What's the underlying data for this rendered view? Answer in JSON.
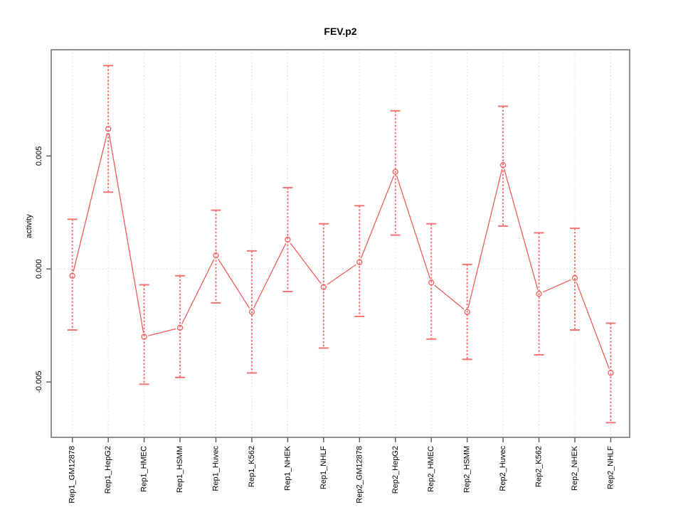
{
  "window": {
    "title": "FEV.p2 plot"
  },
  "chart_data": {
    "type": "line",
    "title": "FEV.p2",
    "xlabel": "",
    "ylabel": "activity",
    "categories": [
      "Rep1_GM12878",
      "Rep1_HepG2",
      "Rep1_HMEC",
      "Rep1_HSMM",
      "Rep1_Huvec",
      "Rep1_K562",
      "Rep1_NHEK",
      "Rep1_NHLF",
      "Rep2_GM12878",
      "Rep2_HepG2",
      "Rep2_HMEC",
      "Rep2_HSMM",
      "Rep2_Huvec",
      "Rep2_K562",
      "Rep2_NHEK",
      "Rep2_NHLF"
    ],
    "values": [
      -0.0003,
      0.0062,
      -0.003,
      -0.0026,
      0.0006,
      -0.0019,
      0.0013,
      -0.0008,
      0.0003,
      0.0043,
      -0.0006,
      -0.0019,
      0.0046,
      -0.0011,
      -0.0004,
      -0.0046
    ],
    "error_high": [
      0.0022,
      0.009,
      -0.0007,
      -0.0003,
      0.0026,
      0.0008,
      0.0036,
      0.002,
      0.0028,
      0.007,
      0.002,
      0.0002,
      0.0072,
      0.0016,
      0.0018,
      -0.0024
    ],
    "error_low": [
      -0.0027,
      0.0034,
      -0.0051,
      -0.0048,
      -0.0015,
      -0.0046,
      -0.001,
      -0.0035,
      -0.0021,
      0.0015,
      -0.0031,
      -0.004,
      0.0019,
      -0.0038,
      -0.0027,
      -0.0068
    ],
    "yticks": [
      {
        "value": 0.005,
        "label": "0.005"
      },
      {
        "value": 0.0,
        "label": "0.000"
      },
      {
        "value": -0.005,
        "label": "-0.005"
      }
    ],
    "ylim": [
      -0.00745,
      0.0097
    ],
    "grid": {
      "vertical_per_category": true,
      "horizontal_at_zero": true
    },
    "legend": "none",
    "marker": "open-circle",
    "colors": {
      "series_line": "#f25c5c",
      "error_bar": "#f47474",
      "marker_stroke": "#f25c5c",
      "grid_line": "#d9d9d9",
      "frame": "#909090",
      "tick": "#606060",
      "text": "#000000",
      "background": "#ffffff"
    }
  }
}
